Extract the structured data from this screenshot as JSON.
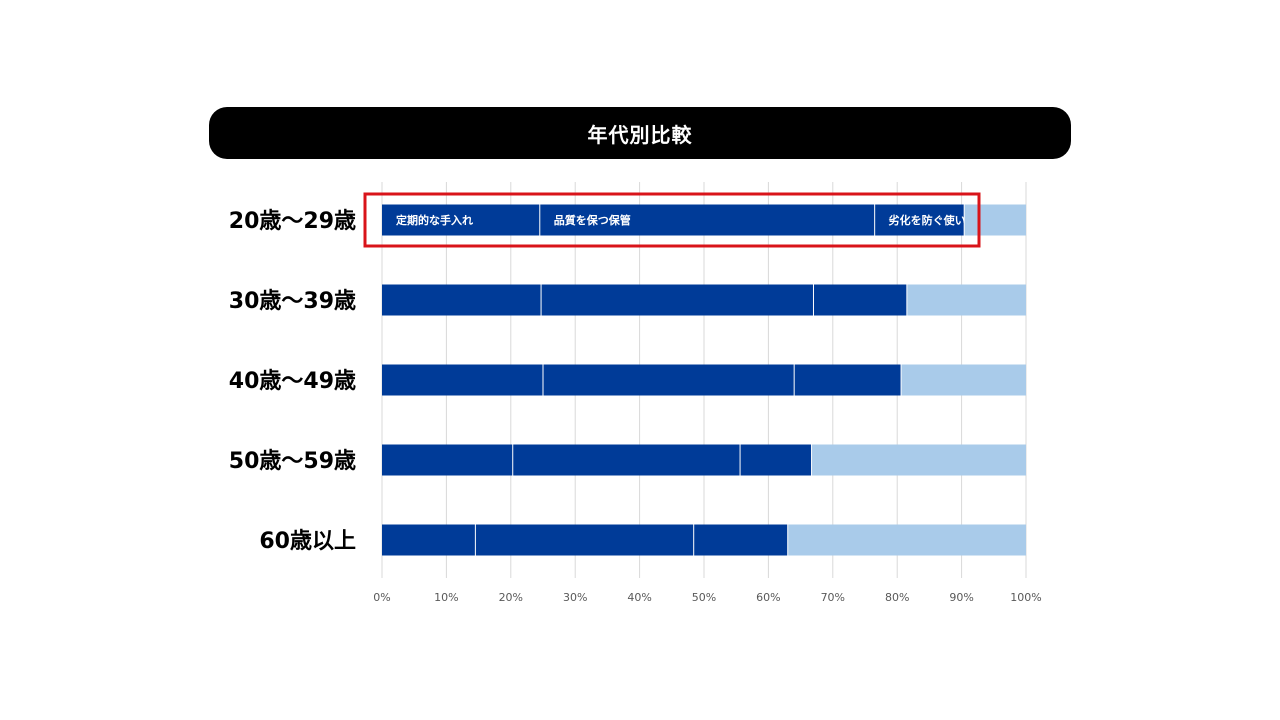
{
  "chart_data": {
    "type": "bar",
    "orientation": "horizontal",
    "stacked": true,
    "percent": true,
    "title": "年代別比較",
    "categories": [
      "20歳～29歳",
      "30歳～39歳",
      "40歳～49歳",
      "50歳～59歳",
      "60歳以上"
    ],
    "series": [
      {
        "name": "定期的な手入れ",
        "color": "#003b98",
        "values": [
          24.5,
          24.7,
          25.0,
          20.3,
          14.5
        ]
      },
      {
        "name": "品質を保つ保管",
        "color": "#003b98",
        "values": [
          52.0,
          42.3,
          39.0,
          35.3,
          33.9
        ]
      },
      {
        "name": "劣化を防ぐ使い方",
        "color": "#003b98",
        "values": [
          13.9,
          14.5,
          16.6,
          11.1,
          14.6
        ]
      },
      {
        "name": "",
        "color": "#a9cbea",
        "values": [
          9.6,
          18.5,
          19.4,
          33.3,
          37.0
        ]
      }
    ],
    "segment_labels_row": 0,
    "segment_labels": [
      "定期的な手入れ",
      "品質を保つ保管",
      "劣化を防ぐ使い方"
    ],
    "x_ticks": [
      "0%",
      "10%",
      "20%",
      "30%",
      "40%",
      "50%",
      "60%",
      "70%",
      "80%",
      "90%",
      "100%"
    ],
    "xlim": [
      0,
      100
    ],
    "grid": true,
    "legend": "none",
    "highlighted_category": "20歳～29歳"
  }
}
